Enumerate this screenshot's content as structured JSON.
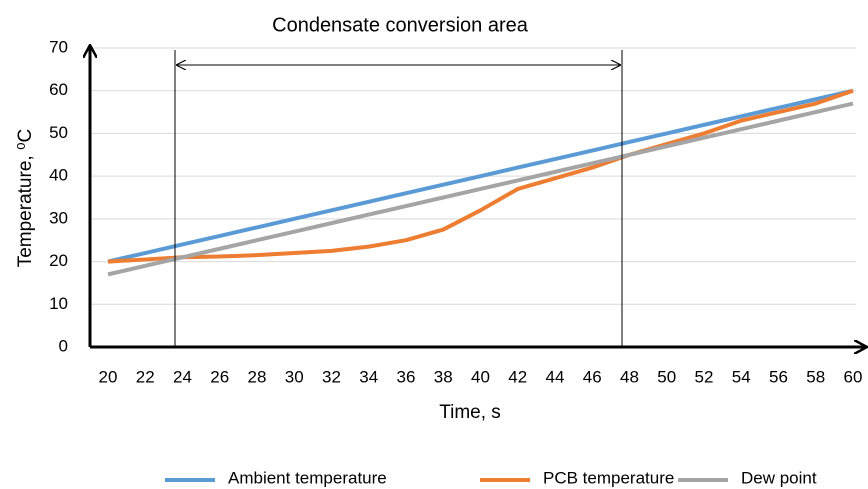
{
  "chart_data": {
    "type": "line",
    "annotation": "Condensate conversion area",
    "xlabel": "Time, s",
    "ylabel": "Temperature, ⁰C",
    "categories": [
      "20",
      "22",
      "24",
      "26",
      "28",
      "30",
      "32",
      "34",
      "36",
      "38",
      "40",
      "42",
      "44",
      "46",
      "48",
      "50",
      "52",
      "54",
      "56",
      "58",
      "60"
    ],
    "series": [
      {
        "name": "Ambient temperature",
        "color": "#5b9bd5",
        "values": [
          20,
          22,
          24,
          26,
          28,
          30,
          32,
          34,
          36,
          38,
          40,
          42,
          44,
          46,
          48,
          50,
          52,
          54,
          56,
          58,
          60
        ]
      },
      {
        "name": "PCB temperature",
        "color": "#ed7d31",
        "values": [
          20,
          20.5,
          21,
          21.2,
          21.5,
          22,
          22.5,
          23.5,
          25,
          27.5,
          32,
          37,
          39.5,
          42,
          45,
          47.5,
          50,
          53,
          55,
          57,
          60
        ]
      },
      {
        "name": "Dew point",
        "color": "#a5a5a5",
        "values": [
          17,
          19,
          21,
          23,
          25,
          27,
          29,
          31,
          33,
          35,
          37,
          39,
          41,
          43,
          45,
          47,
          49,
          51,
          53,
          55,
          57
        ]
      }
    ],
    "ylim": [
      0,
      70
    ],
    "yticks": [
      0,
      10,
      20,
      30,
      40,
      50,
      60,
      70
    ],
    "grid": true,
    "legend": "bottom"
  }
}
